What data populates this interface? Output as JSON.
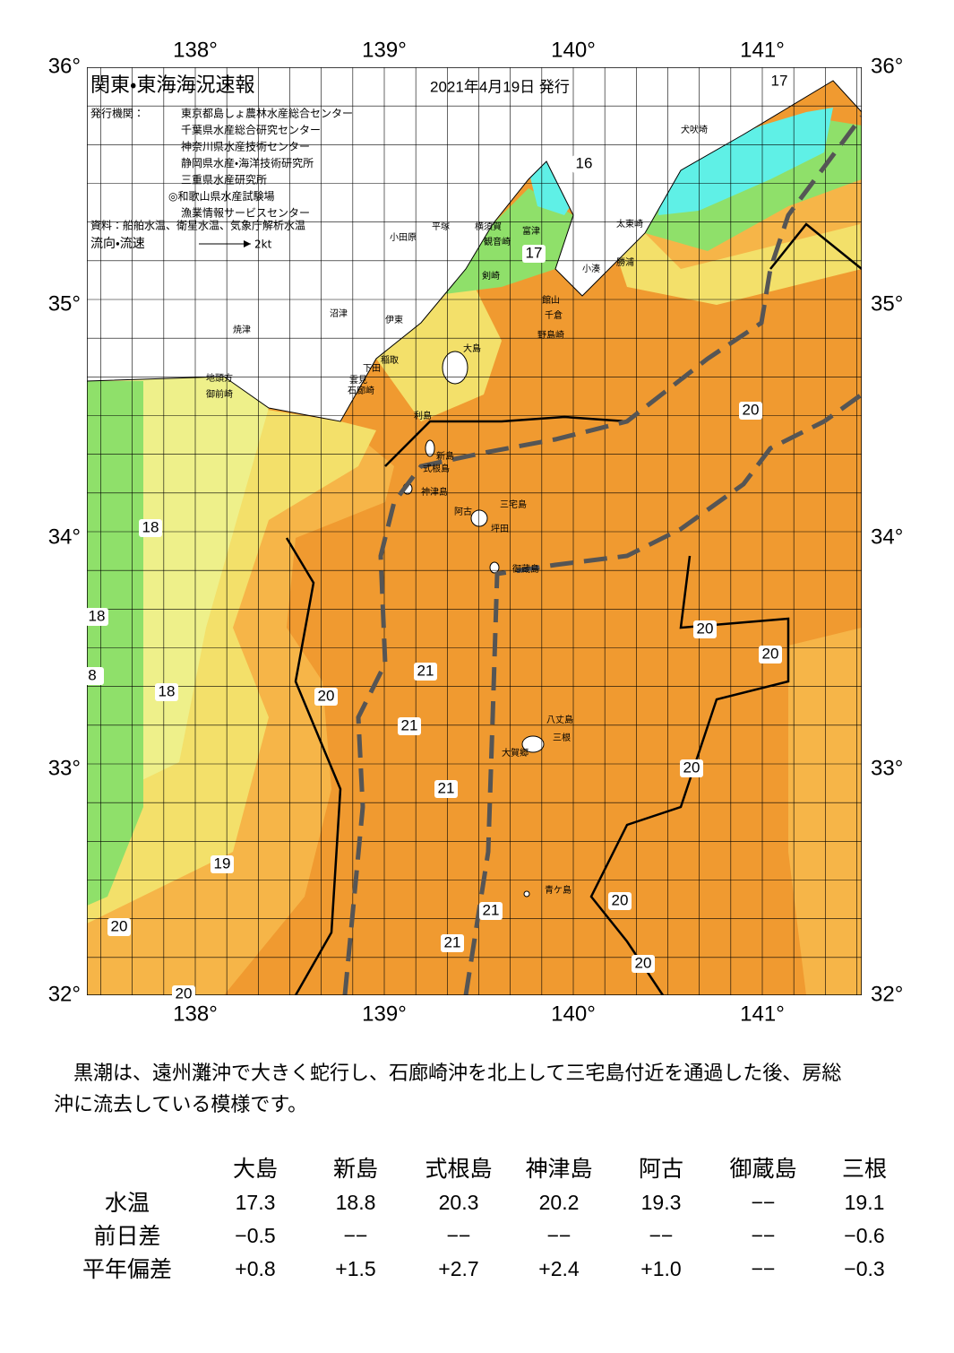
{
  "map": {
    "title": "関東・東海海況速報",
    "date": "2021年4月19日 発行",
    "publisher_label": "発行機関：",
    "publishers": [
      "東京都島しょ農林水産総合センター",
      "千葉県水産総合研究センター",
      "神奈川県水産技術センター",
      "静岡県水産・海洋技術研究所",
      "三重県水産研究所",
      "◎和歌山県水産試験場",
      "漁業情報サービスセンター"
    ],
    "source": "資料：船舶水温、衛星水温、気象庁解析水温",
    "flow_label": "流向・流速",
    "flow_scale": "2kt",
    "lon_labels": [
      "138°",
      "139°",
      "140°",
      "141°"
    ],
    "lat_labels": [
      "36°",
      "35°",
      "34°",
      "33°",
      "32°"
    ],
    "places": [
      "小田原",
      "平塚",
      "横須賀",
      "観音崎",
      "富津",
      "剣崎",
      "館山",
      "千倉",
      "野島崎",
      "小湊",
      "勝浦",
      "太東崎",
      "犬吠埼",
      "沼津",
      "伊東",
      "稲取",
      "下田",
      "雲見",
      "石廊崎",
      "焼津",
      "地頭方",
      "御前崎",
      "大島",
      "利島",
      "新島",
      "式根島",
      "神津島",
      "三宅島",
      "阿古",
      "坪田",
      "御蔵島",
      "八丈島",
      "三根",
      "大賀郷",
      "青ケ島"
    ],
    "temp_labels": [
      "17",
      "16",
      "17",
      "20",
      "18",
      "18",
      "8",
      "18",
      "20",
      "21",
      "21",
      "21",
      "20",
      "20",
      "20",
      "19",
      "20",
      "20",
      "21",
      "21",
      "20",
      "20"
    ]
  },
  "text": "　黒潮は、遠州灘沖で大きく蛇行し、石廊崎沖を北上して三宅島付近を通過した後、房総沖に流去している模様です。",
  "table": {
    "columns": [
      "大島",
      "新島",
      "式根島",
      "神津島",
      "阿古",
      "御蔵島",
      "三根"
    ],
    "rows": [
      {
        "label": "水温",
        "cells": [
          "17.3",
          "18.8",
          "20.3",
          "20.2",
          "19.3",
          "−−",
          "19.1"
        ]
      },
      {
        "label": "前日差",
        "cells": [
          "−0.5",
          "−−",
          "−−",
          "−−",
          "−−",
          "−−",
          "−0.6"
        ]
      },
      {
        "label": "平年偏差",
        "cells": [
          "+0.8",
          "+1.5",
          "+2.7",
          "+2.4",
          "+1.0",
          "−−",
          "−0.3"
        ]
      }
    ]
  }
}
